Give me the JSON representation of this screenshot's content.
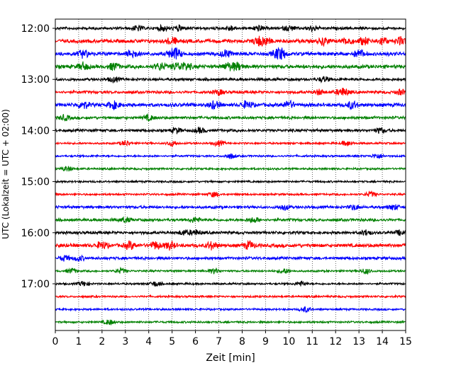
{
  "chart_data": {
    "type": "line",
    "subtype": "helicorder",
    "xlabel": "Zeit  [min]",
    "ylabel": "UTC (Lokalzeit = UTC + 02:00)",
    "xlim": [
      0,
      15
    ],
    "x_ticks": [
      0,
      1,
      2,
      3,
      4,
      5,
      6,
      7,
      8,
      9,
      10,
      11,
      12,
      13,
      14,
      15
    ],
    "x_gridlines": "dotted vertical at each minute",
    "y_tick_labels": [
      "12:00",
      "13:00",
      "14:00",
      "15:00",
      "16:00",
      "17:00"
    ],
    "trace_interval_min": 15,
    "trace_colors": [
      "#000000",
      "#ff0000",
      "#0000ff",
      "#008000"
    ],
    "traces": [
      {
        "start": "12:00",
        "color": "#000000",
        "activity": "medium",
        "events": [
          3.5,
          4.6,
          5.3,
          7.5,
          8.7,
          10.0,
          11.0
        ]
      },
      {
        "start": "12:15",
        "color": "#ff0000",
        "activity": "high",
        "events": [
          5.0,
          8.7,
          9.0,
          11.5,
          12.5,
          13.2,
          14.0,
          14.8
        ]
      },
      {
        "start": "12:30",
        "color": "#0000ff",
        "activity": "high",
        "events": [
          1.2,
          3.3,
          5.0,
          5.2,
          7.3,
          9.5,
          9.7,
          13.0
        ]
      },
      {
        "start": "12:45",
        "color": "#008000",
        "activity": "high",
        "events": [
          1.2,
          2.5,
          4.5,
          5.2,
          5.6,
          7.4,
          7.8
        ]
      },
      {
        "start": "13:00",
        "color": "#000000",
        "activity": "medium",
        "events": [
          2.5,
          11.5
        ]
      },
      {
        "start": "13:15",
        "color": "#ff0000",
        "activity": "medium",
        "events": [
          7.0,
          11.3,
          12.2,
          12.4,
          14.8
        ]
      },
      {
        "start": "13:30",
        "color": "#0000ff",
        "activity": "high",
        "events": [
          1.2,
          2.5,
          6.8,
          8.2,
          10.0,
          12.7
        ]
      },
      {
        "start": "13:45",
        "color": "#008000",
        "activity": "medium",
        "events": [
          0.4,
          4.0
        ]
      },
      {
        "start": "14:00",
        "color": "#000000",
        "activity": "medium",
        "events": [
          5.2,
          6.2,
          13.9
        ]
      },
      {
        "start": "14:15",
        "color": "#ff0000",
        "activity": "low",
        "events": [
          3.0,
          5.0,
          7.0,
          12.5
        ]
      },
      {
        "start": "14:30",
        "color": "#0000ff",
        "activity": "low",
        "events": [
          7.5,
          13.8
        ]
      },
      {
        "start": "14:45",
        "color": "#008000",
        "activity": "low",
        "events": [
          0.5
        ]
      },
      {
        "start": "15:00",
        "color": "#000000",
        "activity": "low",
        "events": []
      },
      {
        "start": "15:15",
        "color": "#ff0000",
        "activity": "low",
        "events": [
          6.8,
          13.5
        ]
      },
      {
        "start": "15:30",
        "color": "#0000ff",
        "activity": "medium",
        "events": [
          9.8,
          12.8,
          14.5
        ]
      },
      {
        "start": "15:45",
        "color": "#008000",
        "activity": "medium",
        "events": [
          3.0,
          6.0,
          8.5
        ]
      },
      {
        "start": "16:00",
        "color": "#000000",
        "activity": "medium",
        "events": [
          5.5,
          6.0,
          13.3,
          14.8
        ]
      },
      {
        "start": "16:15",
        "color": "#ff0000",
        "activity": "high",
        "events": [
          2.0,
          3.2,
          4.3,
          4.9,
          6.7,
          8.3
        ]
      },
      {
        "start": "16:30",
        "color": "#0000ff",
        "activity": "medium",
        "events": [
          0.4,
          1.0
        ]
      },
      {
        "start": "16:45",
        "color": "#008000",
        "activity": "low",
        "events": [
          0.7,
          2.8,
          6.8,
          9.8,
          13.3
        ]
      },
      {
        "start": "17:00",
        "color": "#000000",
        "activity": "low",
        "events": [
          1.2,
          4.3,
          10.5
        ]
      },
      {
        "start": "17:15",
        "color": "#ff0000",
        "activity": "low",
        "events": []
      },
      {
        "start": "17:30",
        "color": "#0000ff",
        "activity": "low",
        "events": [
          10.7
        ]
      },
      {
        "start": "17:45",
        "color": "#008000",
        "activity": "low",
        "events": [
          2.3
        ]
      }
    ]
  }
}
